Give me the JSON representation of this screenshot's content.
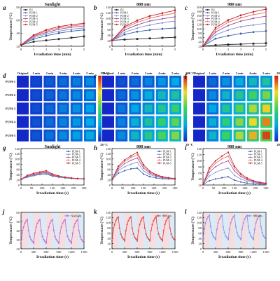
{
  "colors": {
    "PU": "#2b2b2b",
    "PUM-1": "#3a5fa8",
    "PUM-2": "#7f8fd0",
    "PUM-3": "#9b4d96",
    "PUM-4": "#e07060",
    "PUM-5": "#c4202a",
    "sunlight_cycle": "#c760c8",
    "nm808_cycle": "#e23a3a",
    "nm980_cycle": "#8a8ae0"
  },
  "labels": {
    "temperature": "Temperature (°C)",
    "irr_min": "Irradiation time (min)",
    "irr_s": "Irradiation time (s)",
    "sunlight": "Sunlight",
    "nm808": "808 nm",
    "nm980": "980 nm",
    "original": "Original",
    "minutes": [
      "1 min",
      "2 min",
      "3 min",
      "4 min",
      "5 min"
    ],
    "samples": [
      "PUM-1",
      "PUM-2",
      "PUM-3",
      "PUM-4",
      "PUM-5"
    ],
    "cb_d": [
      "150 °C",
      "20 °C"
    ],
    "cb_e": [
      "200 °C",
      "20 °C"
    ],
    "cb_f": [
      "200 °C",
      "20 °C"
    ]
  },
  "chart_data": [
    {
      "panel": "a",
      "type": "line",
      "title": "Sunlight",
      "xlabel": "Irradiation time (min)",
      "ylabel": "Temperature (°C)",
      "x": [
        0,
        1,
        2,
        3,
        4,
        5
      ],
      "xlim": [
        0,
        5
      ],
      "ylim": [
        20,
        80
      ],
      "yticks": [
        20,
        40,
        60,
        80
      ],
      "series": [
        {
          "name": "PU",
          "values": [
            22,
            27,
            29,
            31,
            33,
            35
          ]
        },
        {
          "name": "PUM-1",
          "values": [
            22,
            31,
            36,
            40,
            43,
            45
          ]
        },
        {
          "name": "PUM-2",
          "values": [
            22,
            33,
            39,
            43,
            46,
            48
          ]
        },
        {
          "name": "PUM-3",
          "values": [
            22,
            35,
            41,
            46,
            49,
            51
          ]
        },
        {
          "name": "PUM-4",
          "values": [
            22,
            36,
            43,
            48,
            51,
            53
          ]
        },
        {
          "name": "PUM-5",
          "values": [
            22,
            37,
            45,
            50,
            53,
            55
          ]
        }
      ]
    },
    {
      "panel": "b",
      "type": "line",
      "title": "808 nm",
      "xlabel": "Irradiation time (min)",
      "ylabel": "Temperature (°C)",
      "x": [
        0,
        1,
        2,
        3,
        4,
        5
      ],
      "xlim": [
        0,
        5
      ],
      "ylim": [
        0,
        140
      ],
      "yticks": [
        0,
        20,
        40,
        60,
        80,
        100,
        120,
        140
      ],
      "series": [
        {
          "name": "PU",
          "values": [
            21,
            24,
            26,
            28,
            30,
            32
          ]
        },
        {
          "name": "PUM-1",
          "values": [
            21,
            42,
            52,
            58,
            62,
            65
          ]
        },
        {
          "name": "PUM-2",
          "values": [
            21,
            50,
            65,
            76,
            84,
            90
          ]
        },
        {
          "name": "PUM-3",
          "values": [
            21,
            58,
            76,
            90,
            98,
            105
          ]
        },
        {
          "name": "PUM-4",
          "values": [
            21,
            65,
            85,
            100,
            110,
            118
          ]
        },
        {
          "name": "PUM-5",
          "values": [
            21,
            70,
            92,
            108,
            118,
            128
          ]
        }
      ]
    },
    {
      "panel": "c",
      "type": "line",
      "title": "980 nm",
      "xlabel": "Irradiation time (min)",
      "ylabel": "Temperature (°C)",
      "x": [
        0,
        1,
        2,
        3,
        4,
        5
      ],
      "xlim": [
        0,
        5
      ],
      "ylim": [
        20,
        200
      ],
      "yticks": [
        20,
        40,
        60,
        80,
        100,
        120,
        140,
        160,
        180,
        200
      ],
      "series": [
        {
          "name": "PU",
          "values": [
            21,
            25,
            28,
            30,
            32,
            34
          ]
        },
        {
          "name": "PUM-1",
          "values": [
            21,
            55,
            68,
            78,
            85,
            90
          ]
        },
        {
          "name": "PUM-2",
          "values": [
            21,
            72,
            95,
            110,
            118,
            125
          ]
        },
        {
          "name": "PUM-3",
          "values": [
            21,
            85,
            115,
            135,
            148,
            158
          ]
        },
        {
          "name": "PUM-4",
          "values": [
            21,
            95,
            130,
            150,
            165,
            175
          ]
        },
        {
          "name": "PUM-5",
          "values": [
            21,
            105,
            140,
            162,
            178,
            190
          ]
        }
      ]
    },
    {
      "panel": "g",
      "type": "line",
      "title": "Sunlight",
      "xlabel": "Irradiation time (s)",
      "ylabel": "Temperature (°C)",
      "x": [
        0,
        30,
        60,
        90,
        120,
        150,
        180,
        210,
        240,
        270,
        300
      ],
      "xlim": [
        0,
        300
      ],
      "ylim": [
        0,
        140
      ],
      "yticks": [
        0,
        20,
        40,
        60,
        80,
        100,
        120,
        140
      ],
      "xticks": [
        0,
        50,
        100,
        150,
        200,
        250,
        300
      ],
      "series": [
        {
          "name": "PUM-1",
          "values": [
            22,
            30,
            36,
            40,
            42,
            34,
            30,
            27,
            25,
            24,
            23
          ]
        },
        {
          "name": "PUM-2",
          "values": [
            22,
            32,
            38,
            42,
            45,
            36,
            31,
            28,
            26,
            24,
            23
          ]
        },
        {
          "name": "PUM-3",
          "values": [
            22,
            34,
            40,
            45,
            48,
            38,
            32,
            29,
            26,
            25,
            24
          ]
        },
        {
          "name": "PUM-4",
          "values": [
            22,
            35,
            42,
            47,
            51,
            40,
            33,
            29,
            27,
            25,
            24
          ]
        },
        {
          "name": "PUM-5",
          "values": [
            22,
            37,
            45,
            50,
            55,
            42,
            35,
            30,
            27,
            25,
            24
          ]
        }
      ]
    },
    {
      "panel": "h",
      "type": "line",
      "title": "808 nm",
      "xlabel": "Irradiation time (s)",
      "ylabel": "Temperature (°C)",
      "x": [
        0,
        30,
        60,
        90,
        120,
        150,
        180,
        210,
        240,
        270,
        300
      ],
      "xlim": [
        0,
        300
      ],
      "ylim": [
        0,
        140
      ],
      "yticks": [
        0,
        20,
        40,
        60,
        80,
        100,
        120,
        140
      ],
      "xticks": [
        0,
        50,
        100,
        150,
        200,
        250,
        300
      ],
      "series": [
        {
          "name": "PUM-1",
          "values": [
            21,
            45,
            55,
            62,
            65,
            42,
            32,
            27,
            24,
            23,
            22
          ]
        },
        {
          "name": "PUM-2",
          "values": [
            21,
            55,
            70,
            80,
            88,
            55,
            40,
            32,
            27,
            24,
            23
          ]
        },
        {
          "name": "PUM-3",
          "values": [
            21,
            62,
            82,
            95,
            104,
            65,
            46,
            35,
            29,
            26,
            24
          ]
        },
        {
          "name": "PUM-4",
          "values": [
            21,
            68,
            90,
            105,
            116,
            72,
            50,
            38,
            31,
            27,
            25
          ]
        },
        {
          "name": "PUM-5",
          "values": [
            21,
            72,
            96,
            112,
            125,
            78,
            53,
            40,
            32,
            28,
            25
          ]
        }
      ]
    },
    {
      "panel": "i",
      "type": "line",
      "title": "980 nm",
      "xlabel": "Irradiation time (s)",
      "ylabel": "Temperature (°C)",
      "x": [
        0,
        30,
        60,
        90,
        120,
        150,
        180,
        210,
        240,
        270,
        300
      ],
      "xlim": [
        0,
        300
      ],
      "ylim": [
        20,
        140
      ],
      "yticks": [
        20,
        40,
        60,
        80,
        100,
        120,
        140
      ],
      "xticks": [
        0,
        50,
        100,
        150,
        200,
        250,
        300
      ],
      "series": [
        {
          "name": "PUM-1",
          "values": [
            21,
            34,
            40,
            44,
            47,
            36,
            30,
            26,
            24,
            23,
            22
          ]
        },
        {
          "name": "PUM-2",
          "values": [
            21,
            50,
            62,
            70,
            76,
            52,
            40,
            32,
            28,
            25,
            23
          ]
        },
        {
          "name": "PUM-3",
          "values": [
            21,
            62,
            80,
            92,
            100,
            66,
            48,
            37,
            31,
            27,
            24
          ]
        },
        {
          "name": "PUM-4",
          "values": [
            21,
            70,
            92,
            106,
            115,
            75,
            53,
            40,
            33,
            28,
            25
          ]
        },
        {
          "name": "PUM-5",
          "values": [
            21,
            76,
            100,
            115,
            128,
            82,
            57,
            43,
            34,
            29,
            26
          ]
        }
      ]
    },
    {
      "panel": "j",
      "type": "line",
      "title": "Sunlight",
      "xlabel": "Irradiation time (s)",
      "ylabel": "Temperature (°C)",
      "xlim": [
        0,
        1500
      ],
      "ylim": [
        20,
        60
      ],
      "yticks": [
        20,
        30,
        40,
        50,
        60
      ],
      "xticks": [
        0,
        300,
        600,
        900,
        1200,
        1500
      ],
      "cycle": {
        "period_s": 300,
        "cycles": 5,
        "t_min": 26,
        "t_max": 52
      },
      "series": [
        {
          "name": "Sunlight"
        }
      ]
    },
    {
      "panel": "k",
      "type": "line",
      "title": "808 nm",
      "xlabel": "Irradiation time (s)",
      "ylabel": "Temperature (°C)",
      "xlim": [
        0,
        1500
      ],
      "ylim": [
        0,
        140
      ],
      "yticks": [
        0,
        20,
        40,
        60,
        80,
        100,
        120,
        140
      ],
      "xticks": [
        0,
        300,
        600,
        900,
        1200,
        1500
      ],
      "cycle": {
        "period_s": 300,
        "cycles": 5,
        "t_min": 30,
        "t_max": 122
      },
      "series": [
        {
          "name": "808 nm"
        }
      ]
    },
    {
      "panel": "l",
      "type": "line",
      "title": "980 nm",
      "xlabel": "Irradiation time (s)",
      "ylabel": "Temperature (°C)",
      "xlim": [
        0,
        1500
      ],
      "ylim": [
        0,
        140
      ],
      "yticks": [
        0,
        20,
        40,
        60,
        80,
        100,
        120,
        140
      ],
      "xticks": [
        0,
        300,
        600,
        900,
        1200,
        1500
      ],
      "cycle": {
        "period_s": 300,
        "cycles": 5,
        "t_min": 35,
        "t_max": 128
      },
      "series": [
        {
          "name": "980 nm"
        }
      ]
    }
  ],
  "thermal_grids": [
    {
      "panel": "d",
      "max_c": 150,
      "final_temps": [
        45,
        48,
        51,
        53,
        55
      ]
    },
    {
      "panel": "e",
      "max_c": 200,
      "final_temps": [
        65,
        90,
        105,
        118,
        128
      ]
    },
    {
      "panel": "f",
      "max_c": 200,
      "final_temps": [
        90,
        125,
        158,
        175,
        190
      ]
    }
  ]
}
